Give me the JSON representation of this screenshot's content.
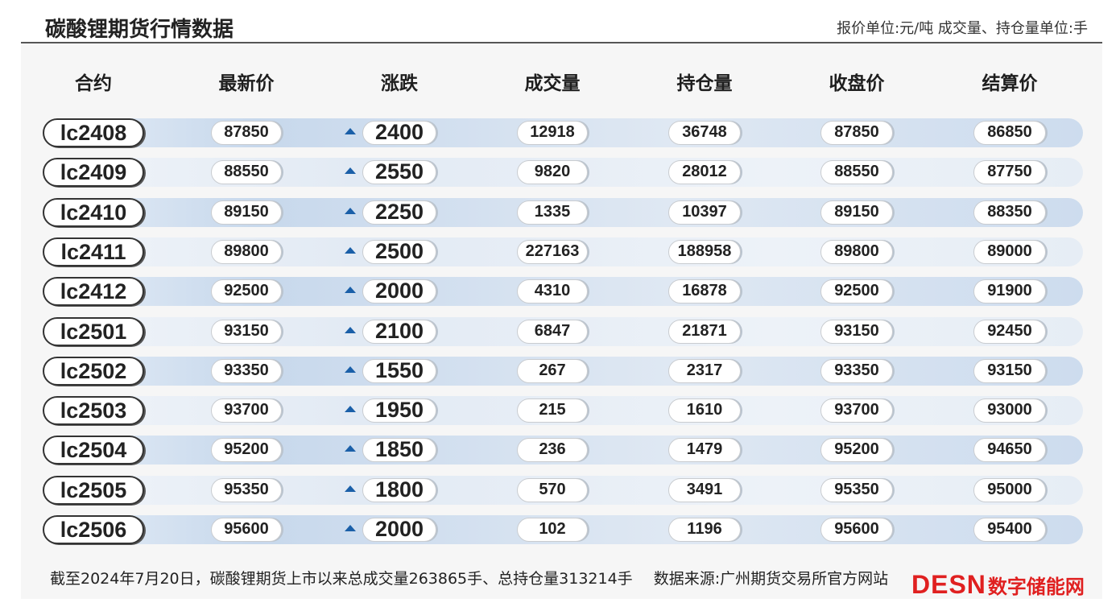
{
  "title": "碳酸锂期货行情数据",
  "unit_note": "报价单位:元/吨 成交量、持仓量单位:手",
  "footer_note": "截至2024年7月20日，碳酸锂期货上市以来总成交量263865手、总持仓量313214手",
  "source_note": "数据来源:广州期货交易所官方网站",
  "watermark": {
    "latin": "DESN",
    "cjk": "数字储能网"
  },
  "colors": {
    "row_blue": "#c7d8ec",
    "arrow_up": "#1a5fa8",
    "watermark": "#e02020"
  },
  "chart_data": {
    "type": "table",
    "columns": [
      "合约",
      "最新价",
      "涨跌",
      "成交量",
      "持仓量",
      "收盘价",
      "结算价"
    ],
    "rows": [
      [
        "lc2408",
        "87850",
        "2400",
        "12918",
        "36748",
        "87850",
        "86850"
      ],
      [
        "lc2409",
        "88550",
        "2550",
        "9820",
        "28012",
        "88550",
        "87750"
      ],
      [
        "lc2410",
        "89150",
        "2250",
        "1335",
        "10397",
        "89150",
        "88350"
      ],
      [
        "lc2411",
        "89800",
        "2500",
        "227163",
        "188958",
        "89800",
        "89000"
      ],
      [
        "lc2412",
        "92500",
        "2000",
        "4310",
        "16878",
        "92500",
        "91900"
      ],
      [
        "lc2501",
        "93150",
        "2100",
        "6847",
        "21871",
        "93150",
        "92450"
      ],
      [
        "lc2502",
        "93350",
        "1550",
        "267",
        "2317",
        "93350",
        "93150"
      ],
      [
        "lc2503",
        "93700",
        "1950",
        "215",
        "1610",
        "93700",
        "93000"
      ],
      [
        "lc2504",
        "95200",
        "1850",
        "236",
        "1479",
        "95200",
        "94650"
      ],
      [
        "lc2505",
        "95350",
        "1800",
        "570",
        "3491",
        "95350",
        "95000"
      ],
      [
        "lc2506",
        "95600",
        "2000",
        "102",
        "1196",
        "95600",
        "95400"
      ]
    ],
    "change_direction": "up"
  }
}
